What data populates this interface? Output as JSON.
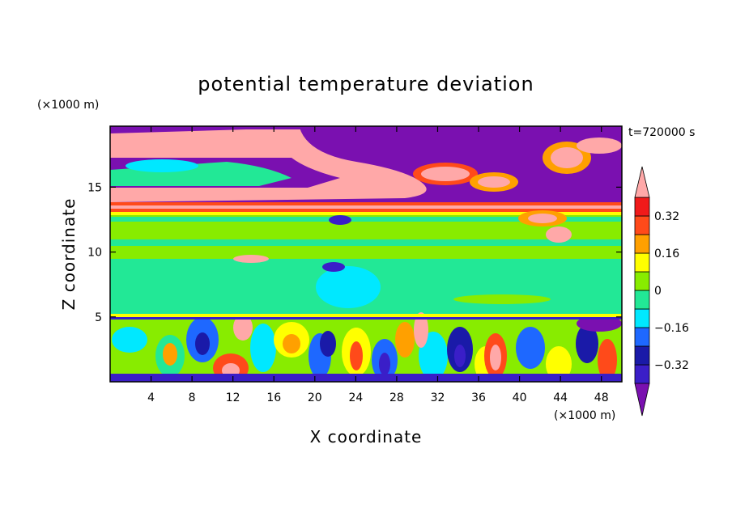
{
  "chart_data": {
    "type": "heatmap",
    "title": "potential temperature deviation",
    "xlabel": "X coordinate",
    "ylabel": "Z coordinate",
    "x_unit": "(×1000 m)",
    "y_unit": "(×1000 m)",
    "time_label": "t=720000 s",
    "xlim": [
      0,
      50
    ],
    "ylim": [
      0,
      19.7
    ],
    "x_ticks": [
      4,
      8,
      12,
      16,
      20,
      24,
      28,
      32,
      36,
      40,
      44,
      48
    ],
    "y_ticks": [
      5,
      10,
      15
    ],
    "colorbar": {
      "levels": [
        -0.4,
        -0.32,
        -0.24,
        -0.16,
        -0.08,
        0,
        0.08,
        0.16,
        0.24,
        0.32,
        0.4
      ],
      "tick_labels": [
        {
          "value": 0.32,
          "label": "0.32"
        },
        {
          "value": 0.16,
          "label": "0.16"
        },
        {
          "value": 0,
          "label": "0"
        },
        {
          "value": -0.16,
          "label": "−0.16"
        },
        {
          "value": -0.32,
          "label": "−0.32"
        }
      ],
      "colors_low_to_high": [
        "#7a10b0",
        "#3a1ec8",
        "#1a1aa8",
        "#1e68ff",
        "#00e8ff",
        "#22e896",
        "#88ec00",
        "#ffff00",
        "#ffa000",
        "#ff4a1a",
        "#f01a1a",
        "#ffa8a8"
      ],
      "extend": "both"
    }
  }
}
